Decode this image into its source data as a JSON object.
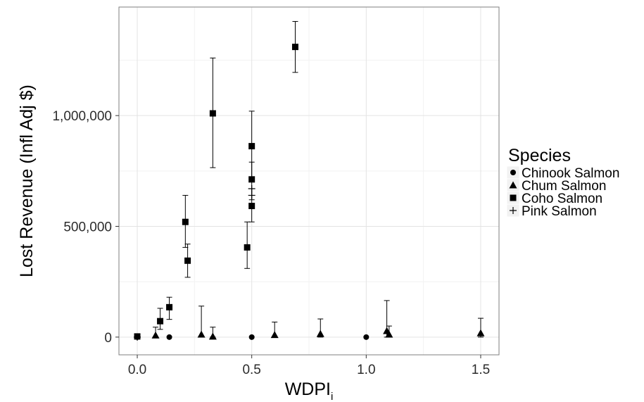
{
  "chart_data": {
    "type": "scatter",
    "xlabel": "WDPI",
    "xlabel_subscript": "i",
    "ylabel": "Lost Revenue (Infl Adj $)",
    "xlim": [
      -0.08,
      1.58
    ],
    "ylim": [
      -80000,
      1490000
    ],
    "x_ticks": [
      0.0,
      0.5,
      1.0,
      1.5
    ],
    "x_tick_labels": [
      "0.0",
      "0.5",
      "1.0",
      "1.5"
    ],
    "y_ticks": [
      0,
      500000,
      1000000
    ],
    "y_tick_labels": [
      "0",
      "500,000",
      "1,000,000"
    ],
    "grid": true,
    "legend": {
      "title": "Species",
      "placement": "right",
      "entries": [
        "Chinook Salmon",
        "Chum Salmon",
        "Coho Salmon",
        "Pink Salmon"
      ]
    },
    "series": [
      {
        "name": "Chinook Salmon",
        "marker": "circle",
        "points": [
          {
            "x": 0.0,
            "y": 0
          },
          {
            "x": 0.14,
            "y": 0
          },
          {
            "x": 0.5,
            "y": 0
          },
          {
            "x": 1.0,
            "y": 0
          }
        ]
      },
      {
        "name": "Chum Salmon",
        "marker": "triangle",
        "points": [
          {
            "x": 0.08,
            "y": 8000,
            "ymin": 0,
            "ymax": 45000
          },
          {
            "x": 0.28,
            "y": 12000,
            "ymin": 0,
            "ymax": 140000
          },
          {
            "x": 0.33,
            "y": 3000,
            "ymin": 0,
            "ymax": 45000
          },
          {
            "x": 0.6,
            "y": 10000,
            "ymin": 0,
            "ymax": 68000
          },
          {
            "x": 0.8,
            "y": 15000,
            "ymin": 0,
            "ymax": 82000
          },
          {
            "x": 1.09,
            "y": 28000,
            "ymin": 0,
            "ymax": 165000
          },
          {
            "x": 1.1,
            "y": 12000,
            "ymin": 0,
            "ymax": 50000
          },
          {
            "x": 1.5,
            "y": 18000,
            "ymin": 0,
            "ymax": 85000
          }
        ]
      },
      {
        "name": "Coho Salmon",
        "marker": "square",
        "points": [
          {
            "x": 0.0,
            "y": 3000
          },
          {
            "x": 0.1,
            "y": 72000,
            "ymin": 35000,
            "ymax": 130000
          },
          {
            "x": 0.14,
            "y": 135000,
            "ymin": 80000,
            "ymax": 180000
          },
          {
            "x": 0.21,
            "y": 520000,
            "ymin": 405000,
            "ymax": 640000
          },
          {
            "x": 0.22,
            "y": 345000,
            "ymin": 270000,
            "ymax": 420000
          },
          {
            "x": 0.33,
            "y": 1010000,
            "ymin": 765000,
            "ymax": 1260000
          },
          {
            "x": 0.48,
            "y": 405000,
            "ymin": 310000,
            "ymax": 520000
          },
          {
            "x": 0.5,
            "y": 862000,
            "ymin": 710000,
            "ymax": 1020000
          },
          {
            "x": 0.5,
            "y": 712000,
            "ymin": 620000,
            "ymax": 790000
          },
          {
            "x": 0.5,
            "y": 592000,
            "ymin": 520000,
            "ymax": 670000
          },
          {
            "x": 0.69,
            "y": 1310000,
            "ymin": 1195000,
            "ymax": 1425000
          }
        ]
      },
      {
        "name": "Pink Salmon",
        "marker": "plus",
        "points": [
          {
            "x": 0.0,
            "y": 0
          },
          {
            "x": 0.5,
            "y": 640000
          },
          {
            "x": 0.5,
            "y": 670000
          }
        ]
      }
    ]
  }
}
